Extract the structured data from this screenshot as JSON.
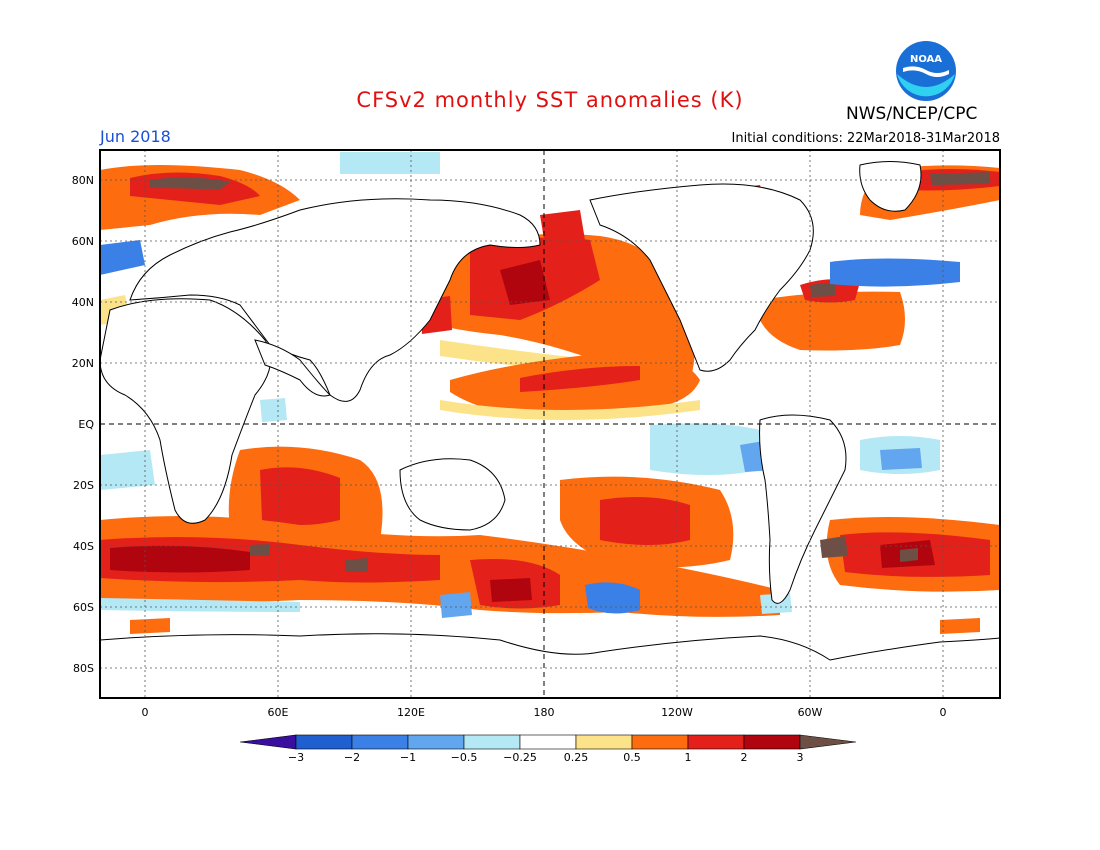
{
  "header": {
    "title": "CFSv2 monthly SST anomalies (K)",
    "organization": "NWS/NCEP/CPC",
    "logo_text": "NOAA",
    "month_label": "Jun 2018",
    "initial_conditions": "Initial conditions: 22Mar2018-31Mar2018"
  },
  "map": {
    "lat_labels": [
      "80N",
      "60N",
      "40N",
      "20N",
      "EQ",
      "20S",
      "40S",
      "60S",
      "80S"
    ],
    "lon_labels": [
      "0",
      "60E",
      "120E",
      "180",
      "120W",
      "60W",
      "0"
    ]
  },
  "colorbar": {
    "tick_labels": [
      "-3",
      "-2",
      "-1",
      "-0.5",
      "-0.25",
      "0.25",
      "0.5",
      "1",
      "2",
      "3"
    ],
    "colors": [
      "#3a0e9e",
      "#1f5fd0",
      "#3b80e6",
      "#62a6f0",
      "#b3e8f4",
      "#ffffff",
      "#fce38a",
      "#fd6c0e",
      "#e4201a",
      "#b0050e",
      "#6e4f45"
    ]
  }
}
